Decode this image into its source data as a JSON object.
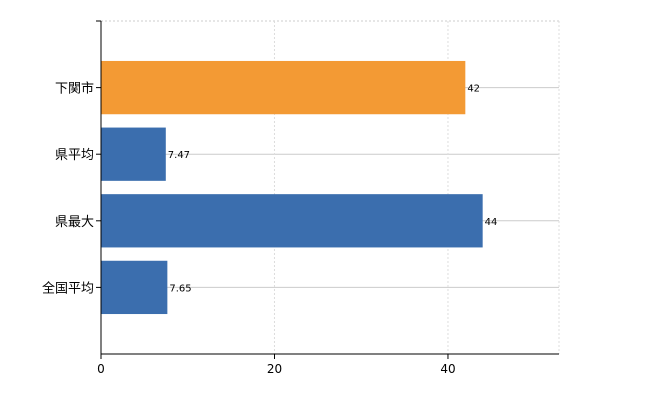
{
  "chart_data": {
    "type": "bar",
    "orientation": "horizontal",
    "categories": [
      "下関市",
      "県平均",
      "県最大",
      "全国平均"
    ],
    "values": [
      42,
      7.47,
      44,
      7.65
    ],
    "value_labels": [
      "42",
      "7.47",
      "44",
      "7.65"
    ],
    "bar_colors": [
      "#F39A34",
      "#3B6EAE",
      "#3B6EAE",
      "#3B6EAE"
    ],
    "xlim": [
      0,
      52.8
    ],
    "xticks": [
      0,
      20,
      40
    ],
    "xtick_labels": [
      "0",
      "20",
      "40"
    ],
    "grid": true,
    "title": "",
    "xlabel": "",
    "ylabel": ""
  }
}
